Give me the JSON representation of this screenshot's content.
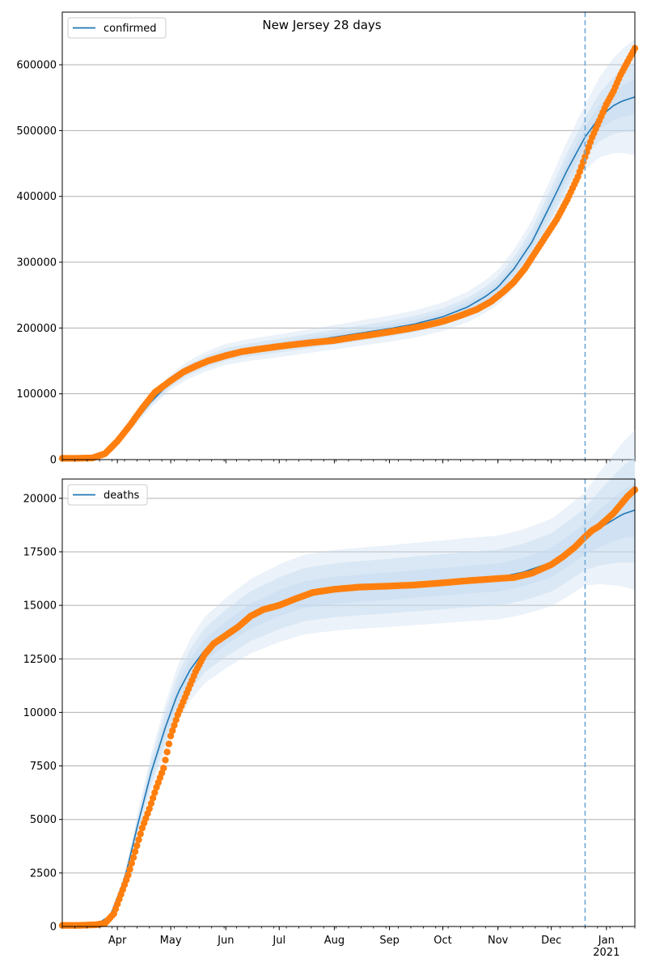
{
  "figure_title": "New Jersey 28 days",
  "colors": {
    "fit_line": "#1f77b4",
    "observed": "#ff7f0e",
    "band": "#c6dbef",
    "forecast_marker": "#6fa8d6",
    "grid": "#b0b0b0"
  },
  "chart_data": [
    {
      "type": "line",
      "name": "confirmed-panel",
      "legend": [
        "confirmed"
      ],
      "legend_placement": "top-left",
      "grid": "horizontal",
      "x_type": "date",
      "xlim": [
        "2020-03-01",
        "2021-01-17"
      ],
      "ylim": [
        0,
        680000
      ],
      "yticks": [
        0,
        100000,
        200000,
        300000,
        400000,
        500000,
        600000
      ],
      "ytick_labels": [
        "0",
        "100000",
        "200000",
        "300000",
        "400000",
        "500000",
        "600000"
      ],
      "forecast_start": "2020-12-20",
      "fit": {
        "name": "confirmed",
        "x": [
          "2020-03-01",
          "2020-03-15",
          "2020-03-25",
          "2020-04-01",
          "2020-04-10",
          "2020-04-20",
          "2020-05-01",
          "2020-05-10",
          "2020-05-20",
          "2020-06-01",
          "2020-06-15",
          "2020-07-01",
          "2020-07-15",
          "2020-08-01",
          "2020-08-15",
          "2020-09-01",
          "2020-09-15",
          "2020-10-01",
          "2020-10-15",
          "2020-10-25",
          "2020-11-01",
          "2020-11-10",
          "2020-11-20",
          "2020-12-01",
          "2020-12-10",
          "2020-12-20",
          "2020-12-28",
          "2021-01-05",
          "2021-01-10",
          "2021-01-17"
        ],
        "y": [
          2000,
          2000,
          8000,
          25000,
          55000,
          88000,
          118000,
          135000,
          148000,
          160000,
          167000,
          173000,
          179000,
          186000,
          192000,
          199000,
          206000,
          217000,
          232000,
          248000,
          262000,
          290000,
          330000,
          390000,
          440000,
          490000,
          520000,
          538000,
          545000,
          551000
        ],
        "band_inner": [
          0.03,
          0.03
        ],
        "band_middle": [
          0.06,
          0.06
        ],
        "band_outer": [
          0.1,
          0.1
        ]
      },
      "observed": {
        "name": "observed confirmed",
        "x": [
          "2020-03-01",
          "2020-03-10",
          "2020-03-18",
          "2020-03-25",
          "2020-04-01",
          "2020-04-08",
          "2020-04-15",
          "2020-04-22",
          "2020-05-01",
          "2020-05-08",
          "2020-05-15",
          "2020-05-22",
          "2020-06-01",
          "2020-06-10",
          "2020-06-20",
          "2020-07-01",
          "2020-07-10",
          "2020-07-20",
          "2020-08-01",
          "2020-08-10",
          "2020-08-20",
          "2020-09-01",
          "2020-09-10",
          "2020-09-20",
          "2020-10-01",
          "2020-10-10",
          "2020-10-20",
          "2020-10-28",
          "2020-11-04",
          "2020-11-10",
          "2020-11-16",
          "2020-11-22",
          "2020-11-28",
          "2020-12-04",
          "2020-12-10",
          "2020-12-16",
          "2020-12-20",
          "2020-12-24",
          "2020-12-28",
          "2021-01-01",
          "2021-01-05",
          "2021-01-09",
          "2021-01-13",
          "2021-01-17"
        ],
        "y": [
          2000,
          2000,
          2500,
          9000,
          28000,
          52000,
          78000,
          102000,
          120000,
          133000,
          142000,
          150000,
          158000,
          164000,
          168000,
          172000,
          175000,
          178000,
          181000,
          185000,
          189000,
          194000,
          198000,
          203000,
          210000,
          218000,
          228000,
          240000,
          255000,
          270000,
          290000,
          315000,
          340000,
          365000,
          395000,
          430000,
          460000,
          490000,
          515000,
          540000,
          560000,
          585000,
          605000,
          625000
        ]
      }
    },
    {
      "type": "line",
      "name": "deaths-panel",
      "legend": [
        "deaths"
      ],
      "legend_placement": "top-left",
      "grid": "horizontal",
      "x_type": "date",
      "xlim": [
        "2020-03-01",
        "2021-01-17"
      ],
      "ylim": [
        0,
        20900
      ],
      "yticks": [
        0,
        2500,
        5000,
        7500,
        10000,
        12500,
        15000,
        17500,
        20000
      ],
      "ytick_labels": [
        "0",
        "2500",
        "5000",
        "7500",
        "10000",
        "12500",
        "15000",
        "17500",
        "20000"
      ],
      "xtick_labels": [
        "Apr",
        "May",
        "Jun",
        "Jul",
        "Aug",
        "Sep",
        "Oct",
        "Nov",
        "Dec",
        "Jan\n2021"
      ],
      "forecast_start": "2020-12-20",
      "fit": {
        "name": "deaths",
        "x": [
          "2020-03-01",
          "2020-03-20",
          "2020-03-28",
          "2020-04-05",
          "2020-04-12",
          "2020-04-20",
          "2020-04-28",
          "2020-05-05",
          "2020-05-12",
          "2020-05-20",
          "2020-06-01",
          "2020-06-15",
          "2020-07-01",
          "2020-07-15",
          "2020-08-01",
          "2020-08-15",
          "2020-09-01",
          "2020-09-15",
          "2020-10-01",
          "2020-10-15",
          "2020-11-01",
          "2020-11-15",
          "2020-12-01",
          "2020-12-10",
          "2020-12-20",
          "2020-12-28",
          "2021-01-05",
          "2021-01-10",
          "2021-01-17"
        ],
        "y": [
          50,
          100,
          500,
          2200,
          4600,
          7200,
          9300,
          10900,
          12000,
          12900,
          13700,
          14500,
          15100,
          15500,
          15700,
          15800,
          15900,
          16000,
          16100,
          16200,
          16300,
          16550,
          17000,
          17500,
          18100,
          18600,
          19000,
          19250,
          19450
        ],
        "band_inner": [
          0.04,
          0.04
        ],
        "band_middle": [
          0.08,
          0.08
        ],
        "band_outer": [
          0.12,
          0.12
        ]
      },
      "observed": {
        "name": "observed deaths",
        "x": [
          "2020-03-01",
          "2020-03-10",
          "2020-03-20",
          "2020-03-25",
          "2020-03-30",
          "2020-04-03",
          "2020-04-07",
          "2020-04-11",
          "2020-04-15",
          "2020-04-19",
          "2020-04-23",
          "2020-04-27",
          "2020-05-01",
          "2020-05-05",
          "2020-05-10",
          "2020-05-15",
          "2020-05-20",
          "2020-05-25",
          "2020-06-01",
          "2020-06-08",
          "2020-06-15",
          "2020-06-22",
          "2020-07-01",
          "2020-07-10",
          "2020-07-20",
          "2020-08-01",
          "2020-08-15",
          "2020-09-01",
          "2020-09-15",
          "2020-10-01",
          "2020-10-15",
          "2020-11-01",
          "2020-11-10",
          "2020-11-20",
          "2020-12-01",
          "2020-12-08",
          "2020-12-14",
          "2020-12-20",
          "2020-12-24",
          "2020-12-28",
          "2021-01-01",
          "2021-01-05",
          "2021-01-09",
          "2021-01-13",
          "2021-01-17"
        ],
        "y": [
          50,
          50,
          80,
          150,
          600,
          1500,
          2400,
          3500,
          4600,
          5500,
          6500,
          7400,
          8900,
          9900,
          10900,
          11900,
          12700,
          13200,
          13600,
          14000,
          14500,
          14800,
          15000,
          15300,
          15600,
          15750,
          15850,
          15900,
          15950,
          16050,
          16150,
          16250,
          16300,
          16500,
          16900,
          17300,
          17700,
          18200,
          18500,
          18700,
          19000,
          19300,
          19700,
          20100,
          20400
        ]
      }
    }
  ]
}
